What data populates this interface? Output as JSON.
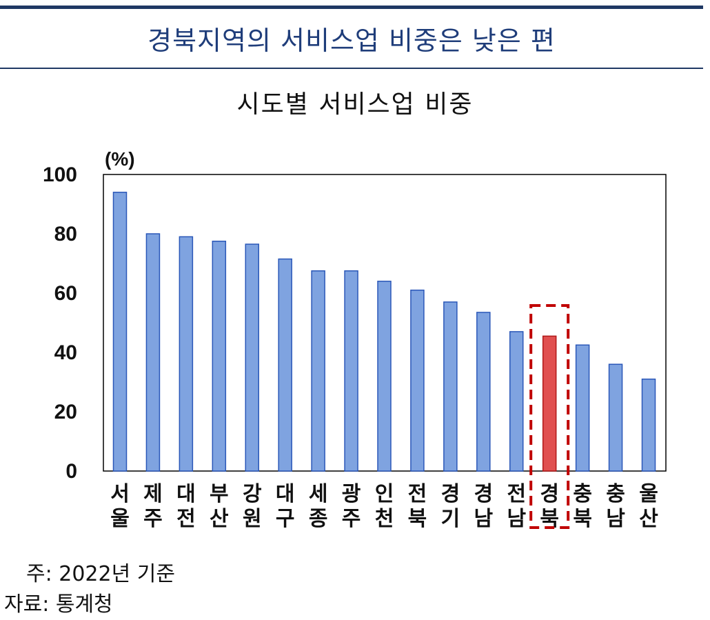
{
  "headline": "경북지역의 서비스업 비중은 낮은 편",
  "colors": {
    "bar": "#7fa3e0",
    "bar_edge": "#2a57b8",
    "highlight_bar": "#e05050",
    "highlight_edge": "#b01818",
    "highlight_box": "#c00000",
    "rule": "#1f3864"
  },
  "chart_data": {
    "type": "bar",
    "title": "시도별 서비스업 비중",
    "ylabel": "(%)",
    "ylim": [
      0,
      100
    ],
    "yticks": [
      "0",
      "20",
      "40",
      "60",
      "80",
      "100"
    ],
    "categories": [
      {
        "line1": "서",
        "line2": "울"
      },
      {
        "line1": "제",
        "line2": "주"
      },
      {
        "line1": "대",
        "line2": "전"
      },
      {
        "line1": "부",
        "line2": "산"
      },
      {
        "line1": "강",
        "line2": "원"
      },
      {
        "line1": "대",
        "line2": "구"
      },
      {
        "line1": "세",
        "line2": "종"
      },
      {
        "line1": "광",
        "line2": "주"
      },
      {
        "line1": "인",
        "line2": "천"
      },
      {
        "line1": "전",
        "line2": "북"
      },
      {
        "line1": "경",
        "line2": "기"
      },
      {
        "line1": "경",
        "line2": "남"
      },
      {
        "line1": "전",
        "line2": "남"
      },
      {
        "line1": "경",
        "line2": "북"
      },
      {
        "line1": "충",
        "line2": "북"
      },
      {
        "line1": "충",
        "line2": "남"
      },
      {
        "line1": "울",
        "line2": "산"
      }
    ],
    "values": [
      94,
      80,
      79,
      77.5,
      76.5,
      71.5,
      67.5,
      67.5,
      64,
      61,
      57,
      53.5,
      47,
      45.5,
      42.5,
      36,
      31
    ],
    "highlight_index": 13,
    "grid": false
  },
  "notes": {
    "basis": "주: 2022년 기준",
    "source": "자료: 통계청"
  }
}
